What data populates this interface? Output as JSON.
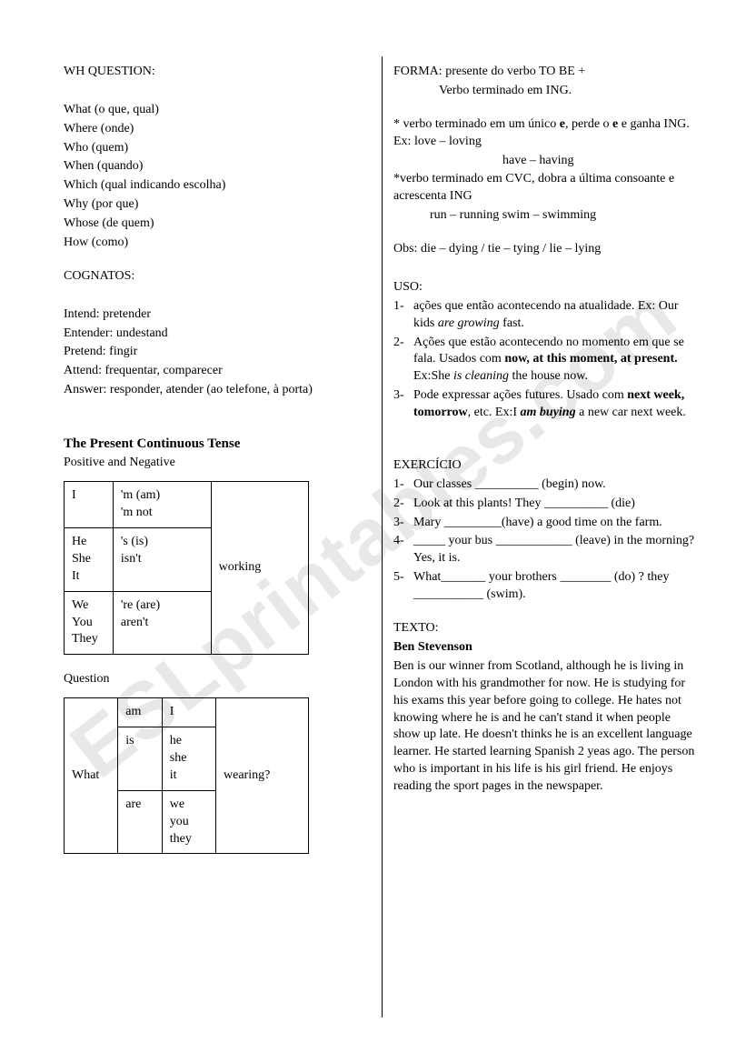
{
  "watermark": "ESLprintables.com",
  "left": {
    "wh_title": "WH QUESTION:",
    "wh_items": [
      "What (o que, qual)",
      "Where (onde)",
      "Who (quem)",
      "When (quando)",
      "Which (qual indicando escolha)",
      "Why (por que)",
      "Whose (de quem)",
      "How (como)"
    ],
    "cog_title": "COGNATOS:",
    "cog_items": [
      "Intend: pretender",
      "Entender: undestand",
      "Pretend: fingir",
      "Attend: frequentar, comparecer",
      "Answer: responder, atender (ao telefone, à porta)"
    ],
    "tense_title": "The Present Continuous Tense",
    "posneg_label": "Positive and Negative",
    "table1": {
      "r1c1": "I",
      "r1c2a": "'m (am)",
      "r1c2b": "'m not",
      "r2c1a": "He",
      "r2c1b": "She",
      "r2c1c": "It",
      "r2c2a": "'s (is)",
      "r2c2b": "isn't",
      "r3c1a": "We",
      "r3c1b": "You",
      "r3c1c": "They",
      "r3c2a": "'re (are)",
      "r3c2b": "aren't",
      "rc3": "working"
    },
    "question_label": "Question",
    "table2": {
      "c1": "What",
      "r1c2": "am",
      "r1c3": "I",
      "r2c2": "is",
      "r2c3a": "he",
      "r2c3b": "she",
      "r2c3c": "it",
      "r3c2": "are",
      "r3c3a": "we",
      "r3c3b": "you",
      "r3c3c": "they",
      "c4": "wearing?"
    }
  },
  "right": {
    "forma_label": "FORMA:",
    "forma_text1": "  presente do verbo TO BE  +",
    "forma_text2": "Verbo terminado em ING.",
    "rule1a": "* verbo terminado em um único ",
    "rule1b": "e",
    "rule1c": ", perde o ",
    "rule1d": "e",
    "rule1e": " e ganha ING. Ex: love – loving",
    "rule1_ex2": "have – having",
    "rule2": "*verbo terminado em CVC, dobra a última consoante e acrescenta ING",
    "rule2_ex": "run – running      swim – swimming",
    "obs": "Obs: die – dying  /  tie – tying  /  lie – lying",
    "uso_title": "USO:",
    "uso": [
      {
        "num": "1-",
        "pre": "ações que então acontecendo na atualidade. Ex: Our kids ",
        "em": "are growing",
        "post": " fast."
      },
      {
        "num": "2-",
        "pre": "Ações que estão acontecendo no momento em que se fala. Usados com ",
        "bold": "now, at this moment, at present.",
        "post2a": " Ex:She ",
        "em2": "is cleaning",
        "post2b": " the house now."
      },
      {
        "num": "3-",
        "pre": "Pode expressar ações futures. Usado com ",
        "bold": "next week, tomorrow",
        "post": ", etc. Ex:I ",
        "em": "am buying",
        "post2": " a new car next week."
      }
    ],
    "ex_title": "EXERCÍCIO",
    "ex": [
      {
        "num": "1-",
        "text": "Our classes __________ (begin) now."
      },
      {
        "num": "2-",
        "text": "Look at this plants! They __________ (die)"
      },
      {
        "num": "3-",
        "text": "Mary _________(have) a good time on the farm."
      },
      {
        "num": "4-",
        "text": "_____ your bus ____________ (leave) in the morning? Yes, it is."
      },
      {
        "num": "5-",
        "text": "What_______ your brothers ________ (do) ? they ___________ (swim)."
      }
    ],
    "texto_label": "TEXTO:",
    "texto_title": "Ben Stevenson",
    "texto_body": "Ben is our winner from Scotland, although he is living in London with his grandmother for now. He is studying for his exams this year before going to college. He hates not knowing where he is and he can't stand it when people show up late. He doesn't thinks he is an excellent language learner. He started learning Spanish 2 yeas ago. The person who is important in his life is his girl friend. He enjoys reading the sport pages in the newspaper."
  }
}
